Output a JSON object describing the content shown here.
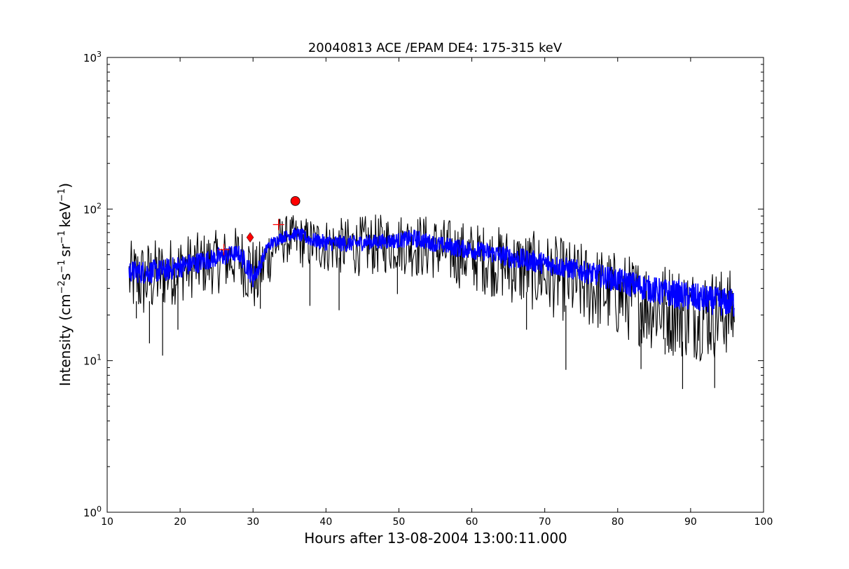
{
  "chart_data": {
    "type": "line",
    "title": "20040813 ACE /EPAM DE4: 175-315 keV",
    "xlabel": "Hours after 13-08-2004 13:00:11.000",
    "ylabel": {
      "base": "Intensity (cm",
      "exp1": "−2",
      "mid1": "s",
      "exp2": "−1",
      "mid2": "sr",
      "exp3": "−1",
      "mid3": "keV",
      "exp4": "−1",
      "end": ")"
    },
    "xlim": [
      10,
      100
    ],
    "ylim": [
      1,
      1000
    ],
    "yscale": "log",
    "grid": false,
    "x_ticks": [
      {
        "value": 10,
        "label": "10"
      },
      {
        "value": 20,
        "label": "20"
      },
      {
        "value": 30,
        "label": "30"
      },
      {
        "value": 40,
        "label": "40"
      },
      {
        "value": 50,
        "label": "50"
      },
      {
        "value": 60,
        "label": "60"
      },
      {
        "value": 70,
        "label": "70"
      },
      {
        "value": 80,
        "label": "80"
      },
      {
        "value": 90,
        "label": "90"
      },
      {
        "value": 100,
        "label": "100"
      }
    ],
    "y_ticks": [
      {
        "value": 1,
        "base": "10",
        "exp": "0"
      },
      {
        "value": 10,
        "base": "10",
        "exp": "1"
      },
      {
        "value": 100,
        "base": "10",
        "exp": "2"
      },
      {
        "value": 1000,
        "base": "10",
        "exp": "3"
      }
    ],
    "x_range_data": [
      13,
      96
    ],
    "series": [
      {
        "role": "envelope",
        "color": "#000000",
        "x": [
          13,
          15,
          18,
          20,
          22,
          24,
          26,
          28,
          29.5,
          30.5,
          32,
          33.5,
          35,
          37,
          40,
          43,
          46,
          50,
          52,
          55,
          58,
          62,
          66,
          70,
          74,
          78,
          82,
          86,
          90,
          93,
          96
        ],
        "upper": [
          62,
          63,
          65,
          68,
          70,
          72,
          74,
          78,
          75,
          58,
          78,
          90,
          92,
          90,
          88,
          88,
          92,
          95,
          96,
          90,
          85,
          80,
          75,
          70,
          62,
          56,
          50,
          46,
          42,
          42,
          40
        ],
        "lower": [
          20,
          18,
          22,
          24,
          26,
          27,
          28,
          30,
          22,
          20,
          30,
          42,
          44,
          40,
          38,
          36,
          36,
          38,
          35,
          34,
          30,
          27,
          23,
          20,
          17,
          15,
          13,
          11,
          10,
          10,
          11
        ],
        "outliers": [
          {
            "x": 14,
            "y": 19
          },
          {
            "x": 15.8,
            "y": 13
          },
          {
            "x": 17.6,
            "y": 10.8
          },
          {
            "x": 19.7,
            "y": 16
          },
          {
            "x": 31,
            "y": 22
          },
          {
            "x": 37.8,
            "y": 23
          },
          {
            "x": 41.8,
            "y": 21.5
          },
          {
            "x": 49.8,
            "y": 27.5
          },
          {
            "x": 67.5,
            "y": 16
          },
          {
            "x": 72.9,
            "y": 8.7
          },
          {
            "x": 83.2,
            "y": 8.8
          },
          {
            "x": 88.9,
            "y": 6.5
          },
          {
            "x": 93.3,
            "y": 6.6
          },
          {
            "x": 86.5,
            "y": 11
          }
        ]
      },
      {
        "role": "smoothed",
        "color": "#0000ff",
        "x": [
          13,
          15,
          18,
          20,
          22,
          24,
          26,
          28,
          29,
          30,
          31,
          32,
          33.5,
          35,
          36,
          38,
          40,
          43,
          46,
          50,
          52,
          55,
          58,
          62,
          66,
          70,
          74,
          78,
          82,
          86,
          90,
          93,
          96
        ],
        "upper": [
          46,
          46,
          47,
          50,
          52,
          54,
          57,
          58,
          52,
          42,
          48,
          62,
          70,
          74,
          76,
          70,
          68,
          67,
          68,
          70,
          74,
          67,
          64,
          60,
          56,
          52,
          47,
          43,
          39,
          35,
          33,
          31,
          30
        ],
        "lower": [
          33,
          32,
          33,
          35,
          37,
          40,
          42,
          45,
          37,
          30,
          38,
          52,
          58,
          62,
          62,
          56,
          53,
          52,
          54,
          55,
          56,
          52,
          48,
          45,
          40,
          37,
          34,
          30,
          26,
          23,
          21,
          20,
          19
        ]
      }
    ],
    "markers": [
      {
        "shape": "plus",
        "x": 26,
        "y": 54,
        "color": "#ff0000"
      },
      {
        "shape": "diamond",
        "x": 29.6,
        "y": 65,
        "color": "#ff0000"
      },
      {
        "shape": "plus",
        "x": 33.5,
        "y": 79,
        "color": "#ff0000"
      },
      {
        "shape": "circle",
        "x": 35.8,
        "y": 113,
        "color": "#ff0000"
      }
    ]
  }
}
